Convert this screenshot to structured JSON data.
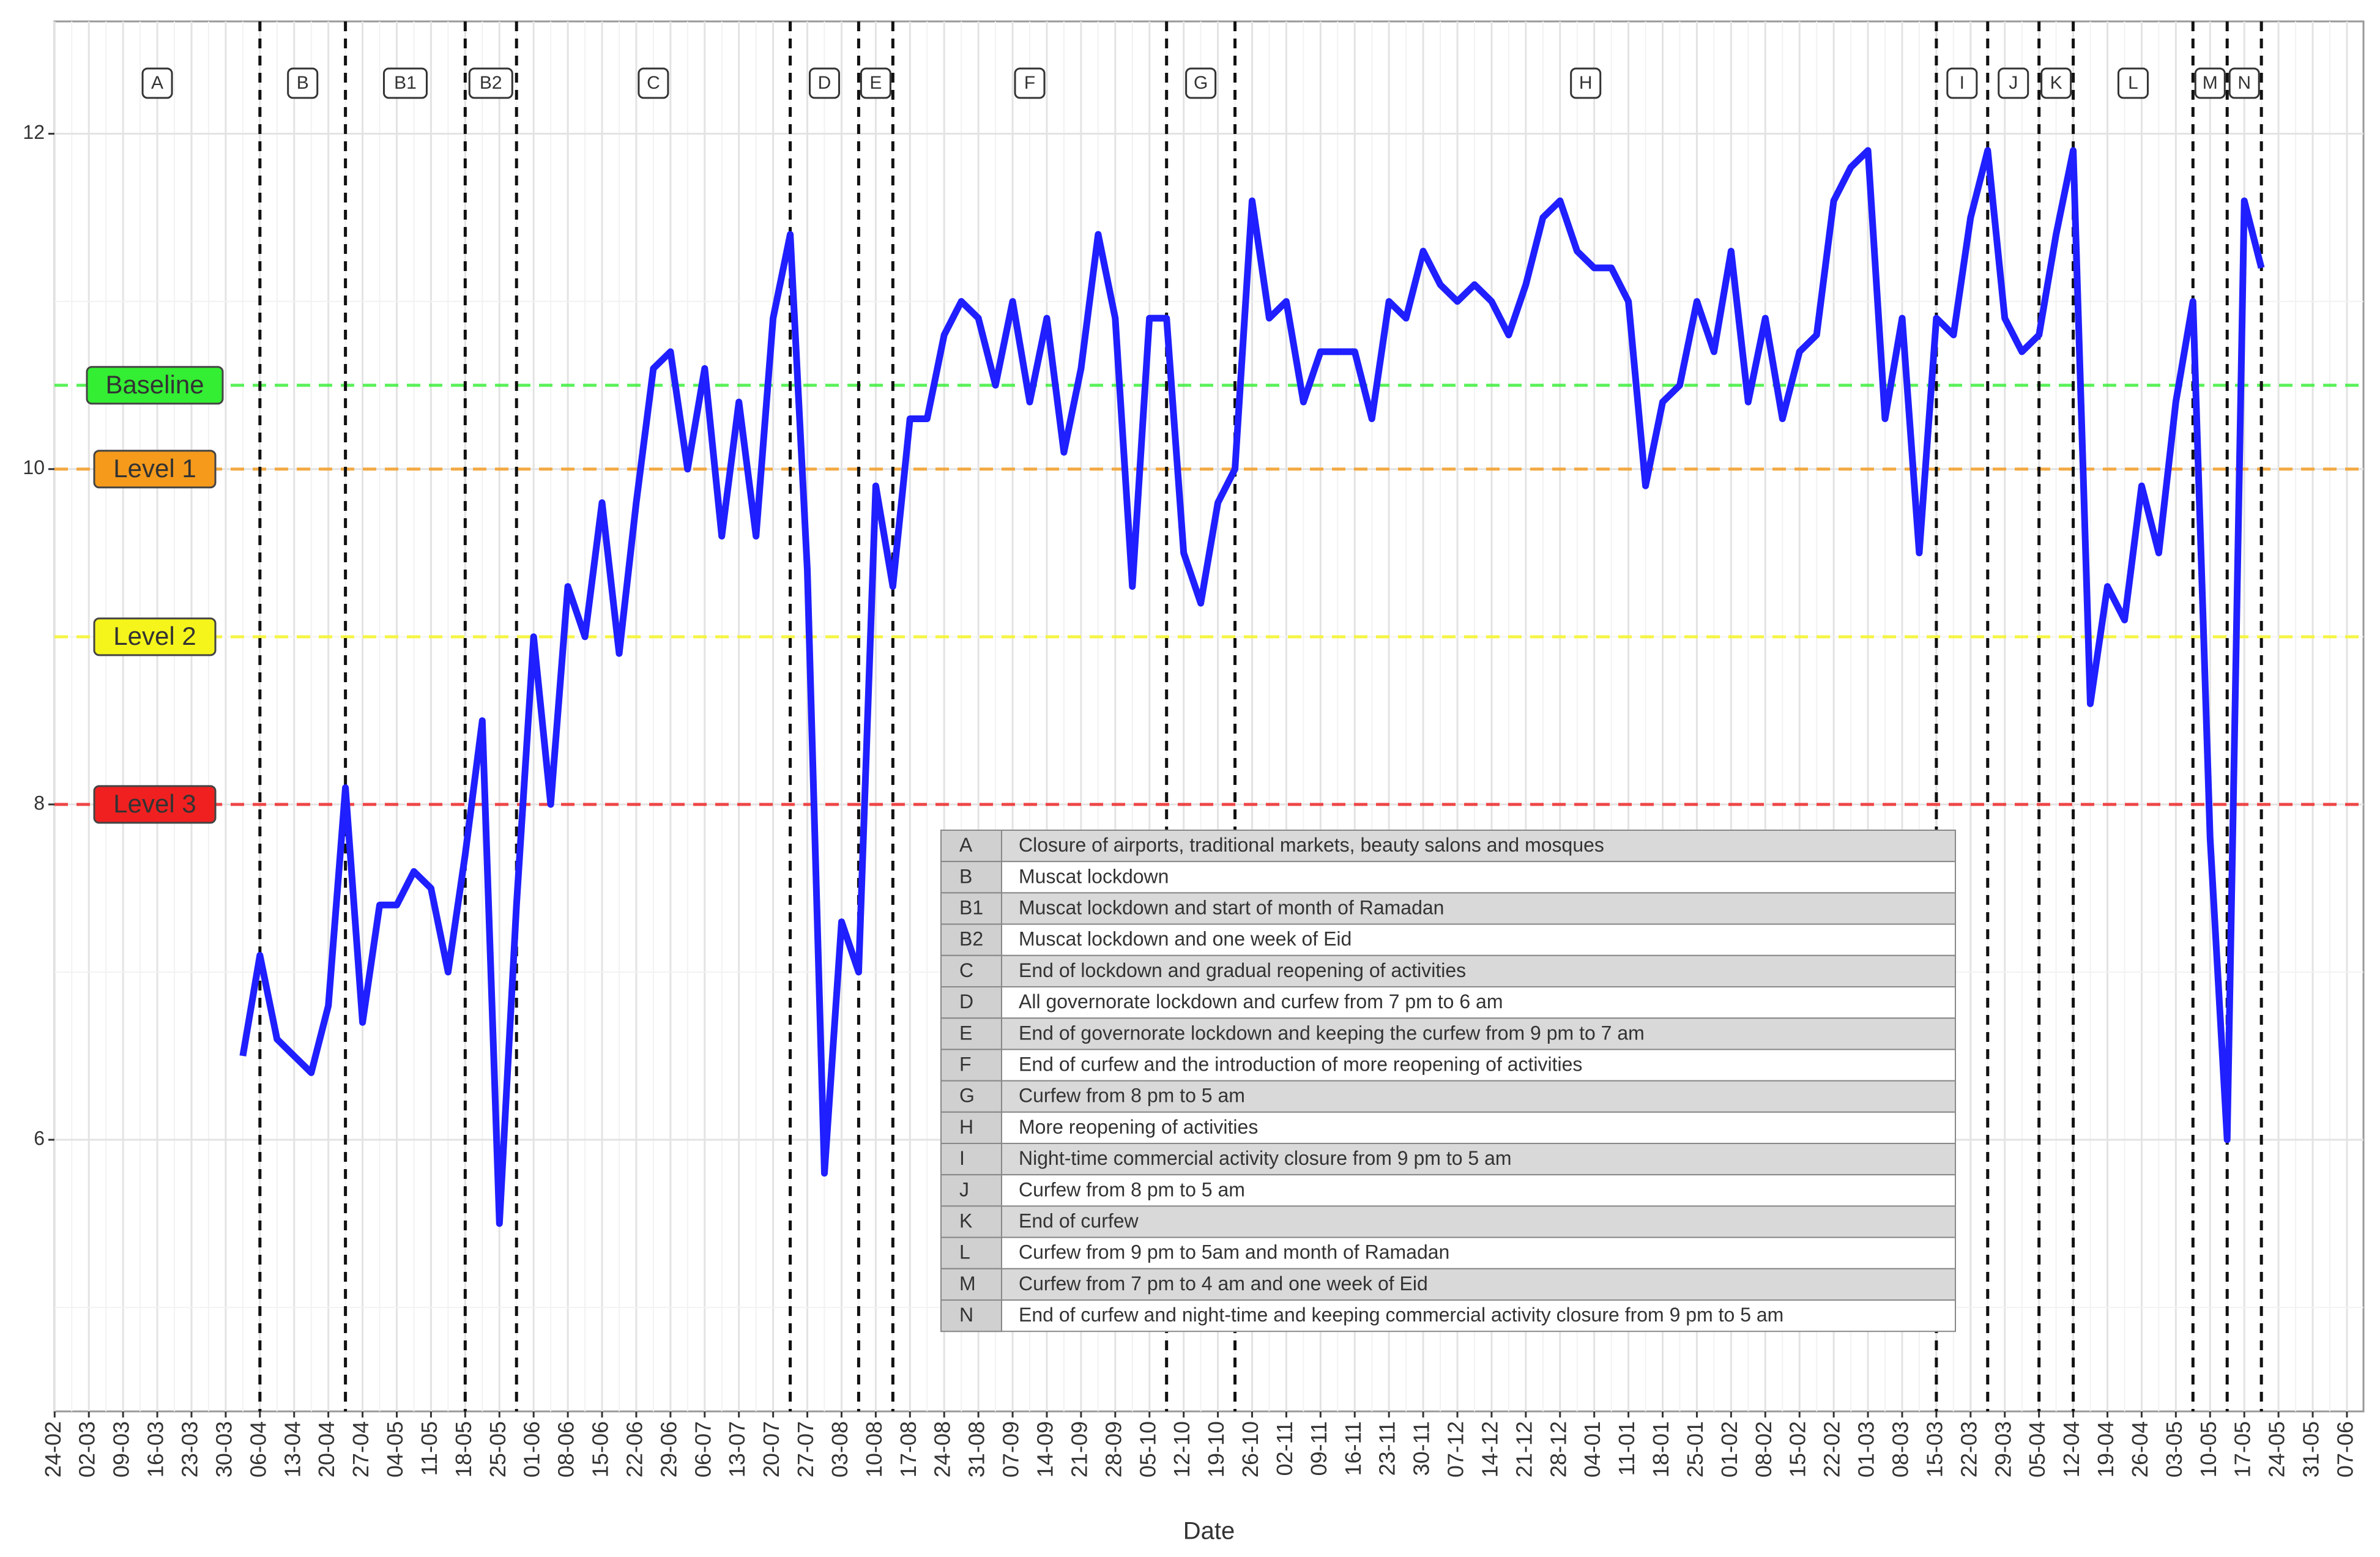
{
  "chart_data": {
    "type": "line",
    "x_label": "Date",
    "categories": [
      "24-02",
      null,
      "02-03",
      null,
      "09-03",
      null,
      "16-03",
      null,
      "23-03",
      null,
      "30-03",
      null,
      "06-04",
      null,
      "13-04",
      null,
      "20-04",
      null,
      "27-04",
      null,
      "04-05",
      null,
      "11-05",
      null,
      "18-05",
      null,
      "25-05",
      null,
      "01-06",
      null,
      "08-06",
      null,
      "15-06",
      null,
      "22-06",
      null,
      "29-06",
      null,
      "06-07",
      null,
      "13-07",
      null,
      "20-07",
      null,
      "27-07",
      null,
      "03-08",
      null,
      "10-08",
      null,
      "17-08",
      null,
      "24-08",
      null,
      "31-08",
      null,
      "07-09",
      null,
      "14-09",
      null,
      "21-09",
      null,
      "28-09",
      null,
      "05-10",
      null,
      "12-10",
      null,
      "19-10",
      null,
      "26-10",
      null,
      "02-11",
      null,
      "09-11",
      null,
      "16-11",
      null,
      "23-11",
      null,
      "30-11",
      null,
      "07-12",
      null,
      "14-12",
      null,
      "21-12",
      null,
      "28-12",
      null,
      "04-01",
      null,
      "11-01",
      null,
      "18-01",
      null,
      "25-01",
      null,
      "01-02",
      null,
      "08-02",
      null,
      "15-02",
      null,
      "22-02",
      null,
      "01-03",
      null,
      "08-03",
      null,
      "15-03",
      null,
      "22-03",
      null,
      "29-03",
      null,
      "05-04",
      null,
      "12-04",
      null,
      "19-04",
      null,
      "26-04",
      null,
      "03-05",
      null,
      "10-05",
      null,
      "17-05",
      null,
      "24-05",
      null,
      "31-05",
      null,
      "07-06"
    ],
    "values": [
      null,
      null,
      null,
      null,
      null,
      null,
      null,
      null,
      null,
      null,
      null,
      6.5,
      7.1,
      6.6,
      6.5,
      6.4,
      6.8,
      8.1,
      6.7,
      7.4,
      7.4,
      7.6,
      7.5,
      7.0,
      7.7,
      8.5,
      5.5,
      7.4,
      9.0,
      8.0,
      9.3,
      9.0,
      9.8,
      8.9,
      9.8,
      10.6,
      10.7,
      10.0,
      10.6,
      9.6,
      10.4,
      9.6,
      10.9,
      11.4,
      9.4,
      5.8,
      7.3,
      7.0,
      9.9,
      9.3,
      10.3,
      10.3,
      10.8,
      11.0,
      10.9,
      10.5,
      11.0,
      10.4,
      10.9,
      10.1,
      10.6,
      11.4,
      10.9,
      9.3,
      10.9,
      10.9,
      9.5,
      9.2,
      9.8,
      10.0,
      11.6,
      10.9,
      11.0,
      10.4,
      10.7,
      10.7,
      10.7,
      10.3,
      11.0,
      10.9,
      11.3,
      11.1,
      11.0,
      11.1,
      11.0,
      10.8,
      11.1,
      11.5,
      11.6,
      11.3,
      11.2,
      11.2,
      11.0,
      9.9,
      10.4,
      10.5,
      11.0,
      10.7,
      11.3,
      10.4,
      10.9,
      10.3,
      10.7,
      10.8,
      11.6,
      11.8,
      11.9,
      10.3,
      10.9,
      9.5,
      10.9,
      10.8,
      11.5,
      11.9,
      10.9,
      10.7,
      10.8,
      11.4,
      11.9,
      8.6,
      9.3,
      9.1,
      9.9,
      9.5,
      10.4,
      11.0,
      7.8,
      6.0,
      11.6,
      11.2,
      null,
      null,
      null,
      null,
      null
    ],
    "color": "#1f1fff",
    "ylim": [
      4.38,
      12.67
    ],
    "yticks": [
      6,
      8,
      10,
      12
    ],
    "grid": true,
    "hlines": [
      {
        "label": "Baseline",
        "value": 10.5,
        "color": "#33ee33"
      },
      {
        "label": "Level 1",
        "value": 10,
        "color": "#f59a1b"
      },
      {
        "label": "Level 2",
        "value": 9,
        "color": "#f5f51b"
      },
      {
        "label": "Level 3",
        "value": 8,
        "color": "#f02020"
      }
    ],
    "event_lines": [
      12,
      17,
      24,
      27,
      43,
      47,
      49,
      65,
      69,
      110,
      113,
      116,
      118,
      125,
      127,
      129
    ],
    "periods": [
      {
        "code": "A",
        "description": "Closure of airports, traditional markets, beauty salons and mosques"
      },
      {
        "code": "B",
        "description": "Muscat lockdown"
      },
      {
        "code": "B1",
        "description": "Muscat lockdown and start of month of Ramadan"
      },
      {
        "code": "B2",
        "description": "Muscat lockdown and one week of Eid"
      },
      {
        "code": "C",
        "description": "End of lockdown and gradual reopening of activities"
      },
      {
        "code": "D",
        "description": "All governorate lockdown and curfew from 7 pm to 6 am"
      },
      {
        "code": "E",
        "description": "End of governorate lockdown and keeping the curfew from 9 pm to 7 am"
      },
      {
        "code": "F",
        "description": "End of curfew and the introduction of more reopening of activities"
      },
      {
        "code": "G",
        "description": "Curfew from 8 pm to 5 am"
      },
      {
        "code": "H",
        "description": "More reopening of activities"
      },
      {
        "code": "I",
        "description": "Night-time commercial activity closure from 9 pm to 5 am"
      },
      {
        "code": "J",
        "description": "Curfew from 8 pm to 5 am"
      },
      {
        "code": "K",
        "description": "End of curfew"
      },
      {
        "code": "L",
        "description": "Curfew from 9 pm to 5am and month of Ramadan"
      },
      {
        "code": "M",
        "description": "Curfew from 7 pm to 4 am and one week of Eid"
      },
      {
        "code": "N",
        "description": "End of curfew and night-time and keeping commercial activity closure from 9 pm to 5 am"
      }
    ]
  }
}
